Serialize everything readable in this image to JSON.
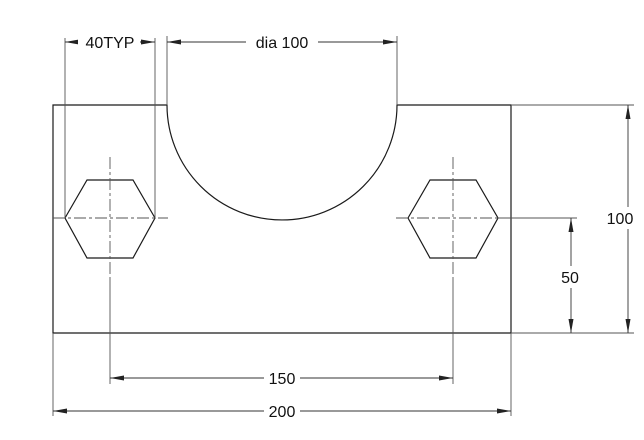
{
  "dimensions": {
    "hole_width": "40TYP",
    "slot_diameter": "dia 100",
    "hole_spacing": "150",
    "overall_width": "200",
    "overall_height": "100",
    "hole_center_height": "50"
  }
}
